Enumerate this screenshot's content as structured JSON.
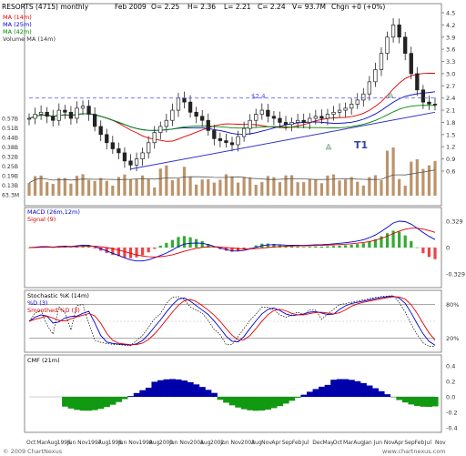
{
  "header": {
    "symbol": "RESORTS (4715) monthly",
    "date": "Feb 2009",
    "open": "O= 2.25",
    "high": "H= 2.36",
    "low": "L= 2.21",
    "close": "C= 2.24",
    "volume": "V= 93.7M",
    "change": "Chgn +0 (+0%)"
  },
  "price_panel": {
    "legend": [
      "MA (14m)",
      "MA (25m)",
      "MA (42m)",
      "Volume MA (14m)"
    ],
    "legend_colors": [
      "#e00000",
      "#0000d0",
      "#008800",
      "#333333"
    ],
    "right_ticks": [
      "4.5",
      "4.2",
      "3.9",
      "3.6",
      "3.3",
      "3.0",
      "2.7",
      "2.4",
      "2.1",
      "1.8",
      "1.5",
      "1.2",
      "0.9",
      "0.6"
    ],
    "left_volume_ticks": [
      "0.57B",
      "0.51B",
      "0.44B",
      "0.38B",
      "0.32B",
      "0.25B",
      "0.19B",
      "0.13B",
      "63.3M"
    ],
    "level_label": "$2.4",
    "trendline_label": "T1"
  },
  "macd_panel": {
    "legend": [
      "MACD (26m,12m)",
      "Signal (9)"
    ],
    "ticks": [
      "0.329",
      "0",
      "-0.329"
    ]
  },
  "stoch_panel": {
    "legend": [
      "Stochastic %K (14m)",
      "%D (3)",
      "Smoothed %D (3)"
    ],
    "ticks": [
      "80%",
      "20%"
    ]
  },
  "cmf_panel": {
    "legend": [
      "CMF (21m)"
    ],
    "ticks": [
      "0.4",
      "0.2",
      "0.0",
      "-0.2",
      "-0.4"
    ]
  },
  "x_axis": {
    "labels": [
      "Oct",
      "Mar",
      "Aug",
      "1996",
      "Jun",
      "Nov",
      "1997",
      "Aug",
      "1998",
      "Jun",
      "Nov",
      "1999",
      "Aug",
      "2000",
      "Jun",
      "Nov",
      "2001",
      "Aug",
      "2002",
      "Jun",
      "Nov",
      "2003",
      "Aug",
      "Nov",
      "Apr",
      "Sep",
      "Feb",
      "Jul",
      "Dec",
      "May",
      "Oct",
      "Mar",
      "Aug",
      "Jan",
      "Jun",
      "Nov",
      "Apr",
      "Sep",
      "Feb",
      "Jul",
      "Nov"
    ]
  },
  "footer": {
    "copyright": "© 2009 ChartNexus",
    "watermark": "www.chartnexus.com"
  },
  "colors": {
    "up": "#222222",
    "down": "#222222",
    "ma14": "#e00000",
    "ma25": "#0000d0",
    "ma42": "#008800",
    "volume": "#b08050",
    "macd": "#0000d0",
    "signal": "#e00000",
    "hist_pos": "#33aa33",
    "hist_neg": "#ee4444",
    "cmf_pos": "#0000aa",
    "cmf_neg": "#119911",
    "level": "#6666ff",
    "trend": "#3333cc"
  },
  "chart_data": {
    "type": "line",
    "title": "RESORTS (4715) monthly",
    "series": [
      {
        "name": "Close",
        "values": [
          1.9,
          2.0,
          2.05,
          1.95,
          1.85,
          2.1,
          2.05,
          1.9,
          2.15,
          2.2,
          2.0,
          1.7,
          1.5,
          1.3,
          1.15,
          1.05,
          0.85,
          0.75,
          0.9,
          1.05,
          1.3,
          1.55,
          1.7,
          1.85,
          2.1,
          2.4,
          2.3,
          2.05,
          1.95,
          1.85,
          1.6,
          1.4,
          1.35,
          1.3,
          1.25,
          1.45,
          1.65,
          1.85,
          2.0,
          2.1,
          1.95,
          1.9,
          1.8,
          1.75,
          1.8,
          1.85,
          1.8,
          1.9,
          1.95,
          1.9,
          2.0,
          2.05,
          2.1,
          2.15,
          2.25,
          2.35,
          2.5,
          2.8,
          3.1,
          3.5,
          3.9,
          4.2,
          3.9,
          3.5,
          3.0,
          2.6,
          2.3,
          2.25,
          2.24
        ]
      }
    ],
    "ylim": [
      0.6,
      4.5
    ],
    "grid": false
  }
}
